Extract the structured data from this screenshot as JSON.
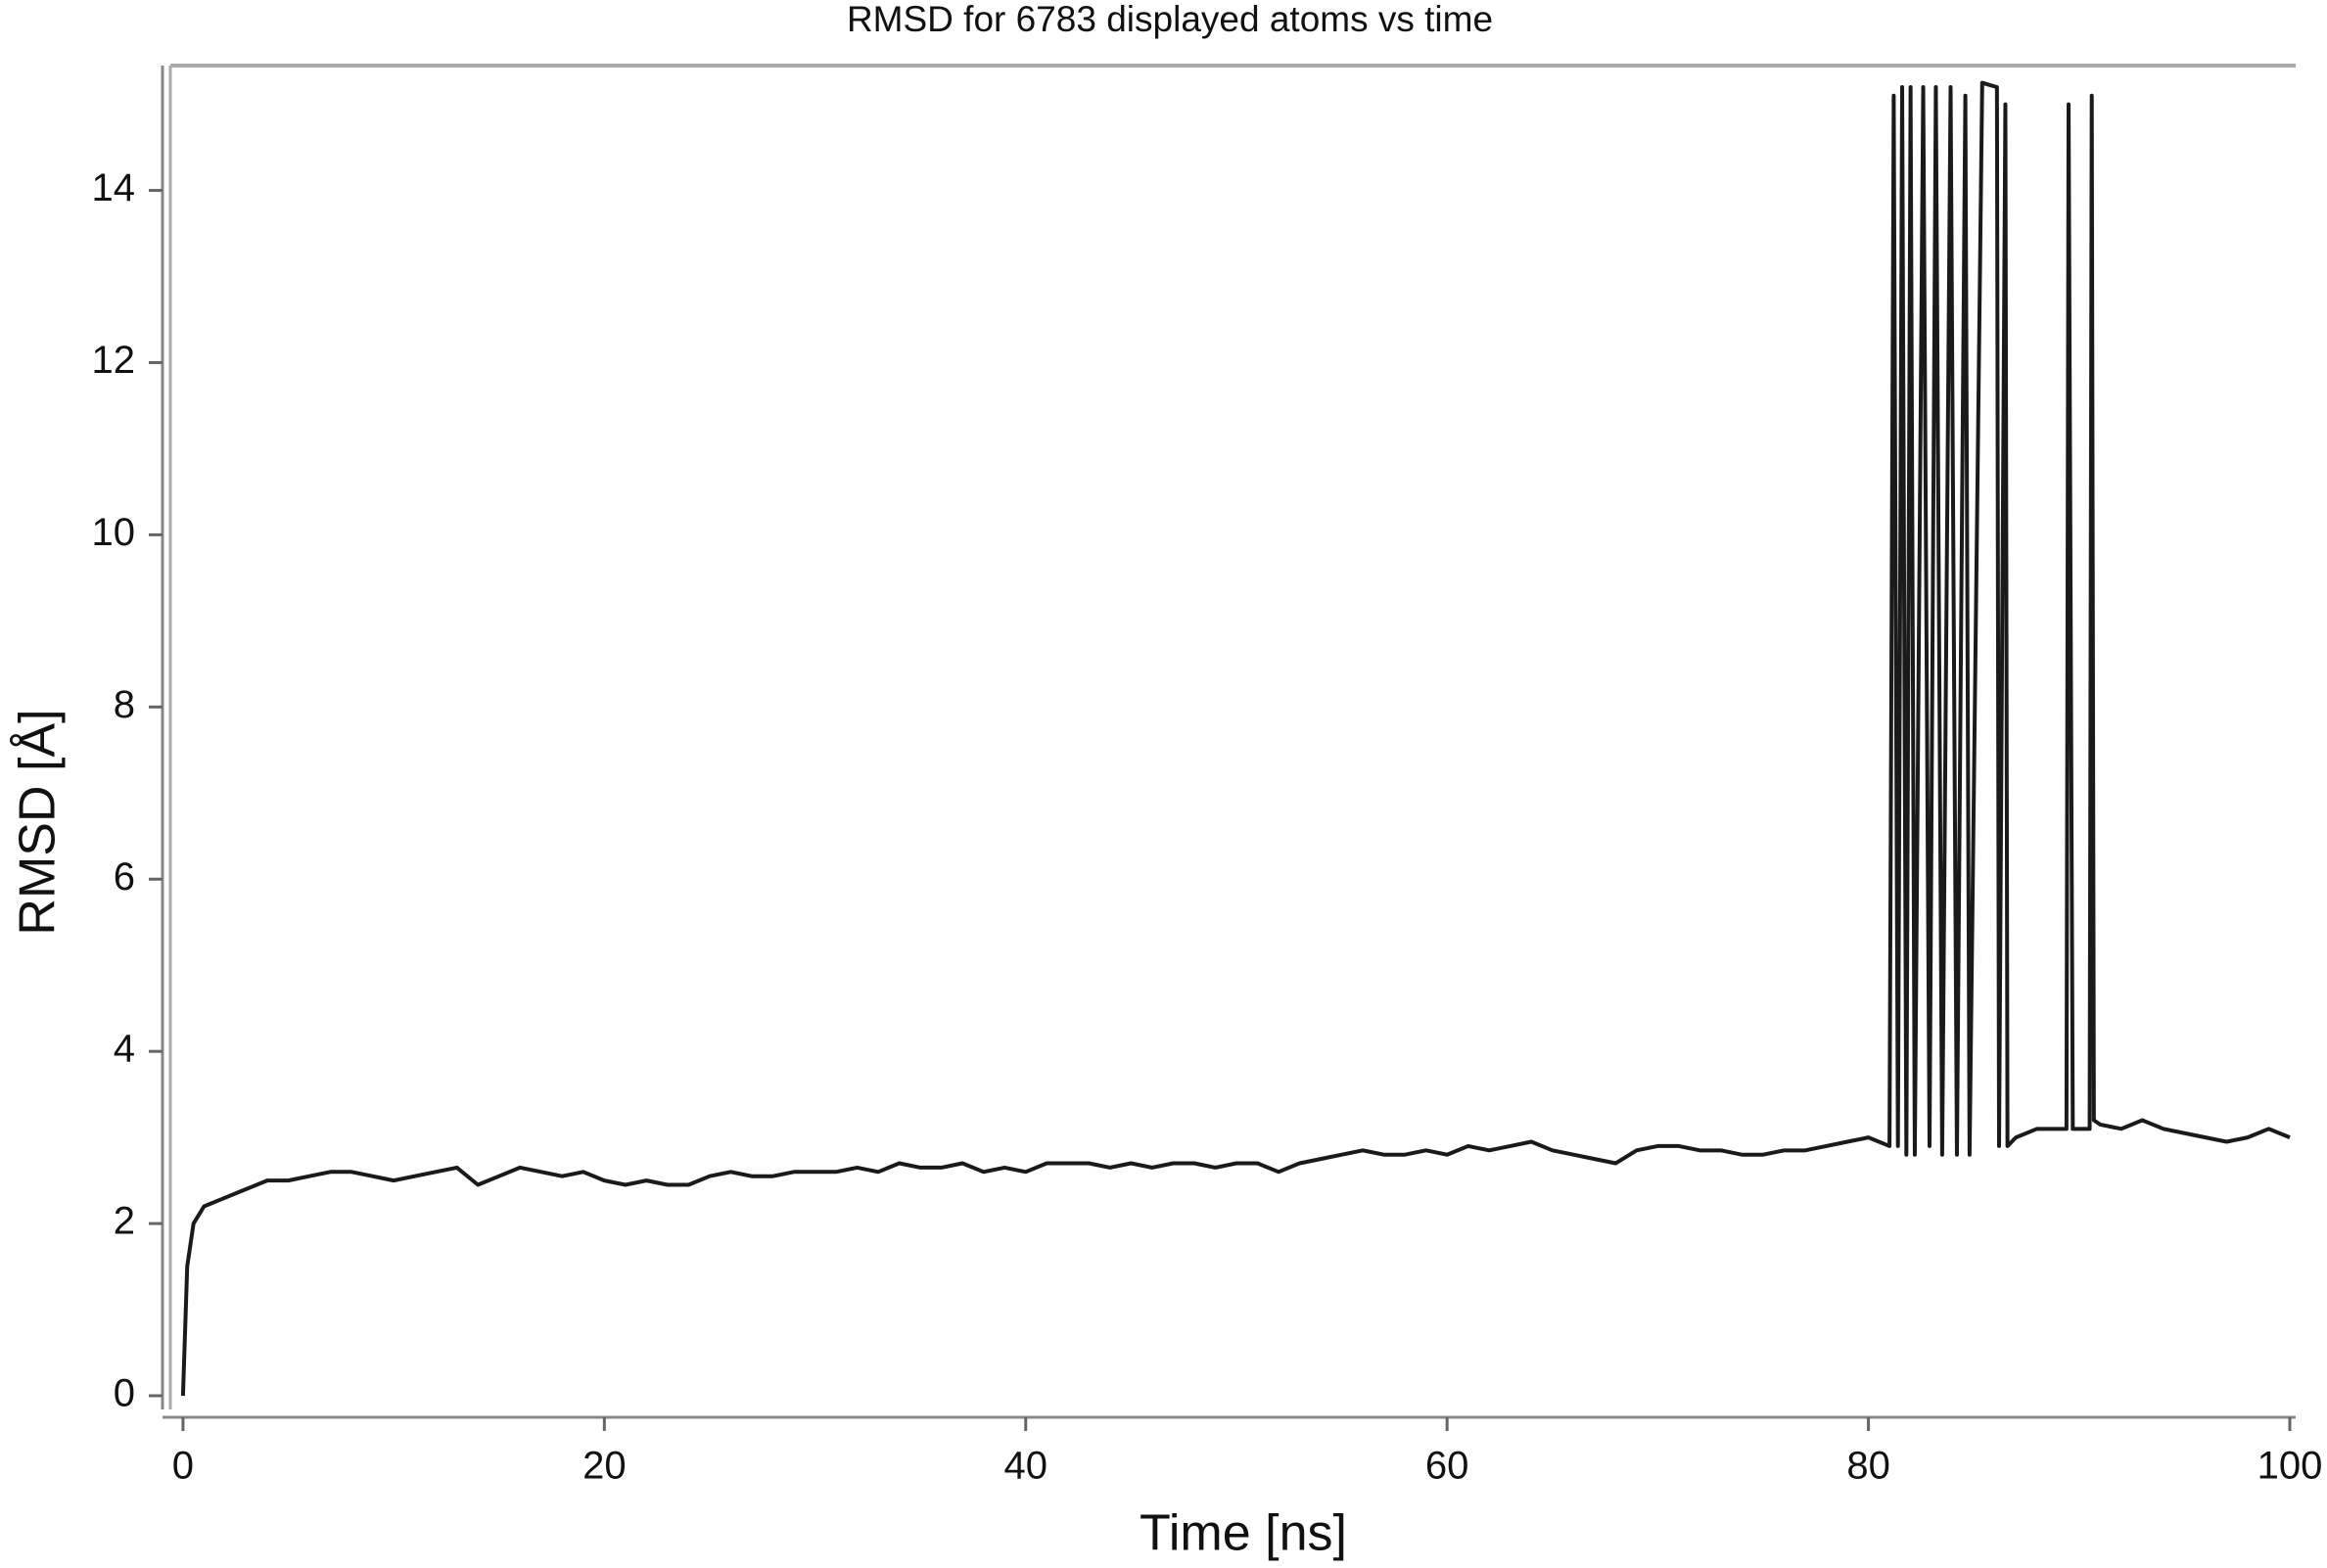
{
  "chart_data": {
    "type": "line",
    "title": "RMSD for 6783 displayed atoms vs time",
    "x_label": "Time [ns]",
    "y_label": "RMSD [Å]",
    "xlim": [
      -0.6,
      100
    ],
    "ylim": [
      -0.25,
      15.45
    ],
    "xticks": [
      0,
      20,
      40,
      60,
      80,
      100
    ],
    "yticks": [
      0,
      2,
      4,
      6,
      8,
      10,
      12,
      14
    ],
    "series": [
      {
        "color": "#1a1a1a",
        "x": [
          0,
          0.2,
          0.5,
          1,
          2,
          3,
          4,
          5,
          6,
          7,
          8,
          9,
          10,
          11,
          12,
          13,
          14,
          15,
          16,
          17,
          18,
          19,
          20,
          21,
          22,
          23,
          24,
          25,
          26,
          27,
          28,
          29,
          30,
          31,
          32,
          33,
          34,
          35,
          36,
          37,
          38,
          39,
          40,
          41,
          42,
          43,
          44,
          45,
          46,
          47,
          48,
          49,
          50,
          51,
          52,
          53,
          54,
          55,
          56,
          57,
          58,
          59,
          60,
          61,
          62,
          63,
          64,
          65,
          66,
          67,
          68,
          69,
          70,
          71,
          72,
          73,
          74,
          75,
          76,
          77,
          78,
          79,
          80,
          81,
          81.2,
          81.4,
          81.6,
          81.8,
          82,
          82.2,
          82.6,
          82.9,
          83.2,
          83.5,
          83.9,
          84.2,
          84.6,
          84.8,
          85.4,
          86.1,
          86.2,
          86.5,
          86.6,
          87,
          88,
          89,
          89.4,
          89.5,
          89.7,
          90.5,
          90.6,
          90.7,
          91,
          92,
          93,
          94,
          95,
          96,
          97,
          98,
          99,
          100
        ],
        "values": [
          0,
          1.5,
          2.0,
          2.2,
          2.3,
          2.4,
          2.5,
          2.5,
          2.55,
          2.6,
          2.6,
          2.55,
          2.5,
          2.55,
          2.6,
          2.65,
          2.45,
          2.55,
          2.65,
          2.6,
          2.55,
          2.6,
          2.5,
          2.45,
          2.5,
          2.45,
          2.45,
          2.55,
          2.6,
          2.55,
          2.55,
          2.6,
          2.6,
          2.6,
          2.65,
          2.6,
          2.7,
          2.65,
          2.65,
          2.7,
          2.6,
          2.65,
          2.6,
          2.7,
          2.7,
          2.7,
          2.65,
          2.7,
          2.65,
          2.7,
          2.7,
          2.65,
          2.7,
          2.7,
          2.6,
          2.7,
          2.75,
          2.8,
          2.85,
          2.8,
          2.8,
          2.85,
          2.8,
          2.9,
          2.85,
          2.9,
          2.95,
          2.85,
          2.8,
          2.75,
          2.7,
          2.85,
          2.9,
          2.9,
          2.85,
          2.85,
          2.8,
          2.8,
          2.85,
          2.85,
          2.9,
          2.95,
          3.0,
          2.9,
          15.1,
          2.9,
          15.2,
          2.8,
          15.2,
          2.8,
          15.2,
          2.9,
          15.2,
          2.8,
          15.2,
          2.8,
          15.1,
          2.8,
          15.25,
          15.2,
          2.9,
          15.0,
          2.9,
          3.0,
          3.1,
          3.1,
          3.1,
          15.0,
          3.1,
          3.1,
          15.1,
          3.2,
          3.15,
          3.1,
          3.2,
          3.1,
          3.05,
          3.0,
          2.95,
          3.0,
          3.1,
          3.0
        ]
      }
    ]
  }
}
